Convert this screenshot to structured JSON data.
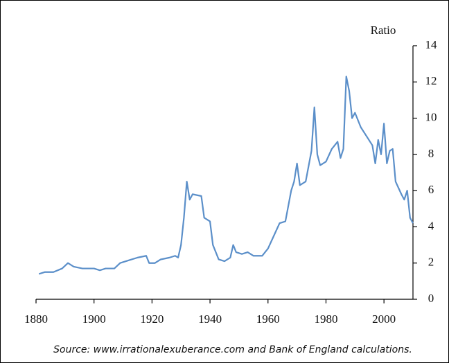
{
  "chart_data": {
    "type": "line",
    "y_label": "Ratio",
    "source": "Source:  www.irrationalexuberance.com and Bank of England calculations.",
    "x": [
      1881,
      1883,
      1886,
      1889,
      1891,
      1893,
      1896,
      1900,
      1902,
      1904,
      1907,
      1909,
      1911,
      1913,
      1915,
      1918,
      1919,
      1921,
      1923,
      1926,
      1928,
      1929,
      1930,
      1931,
      1932,
      1933,
      1934,
      1937,
      1938,
      1940,
      1941,
      1943,
      1945,
      1947,
      1948,
      1949,
      1951,
      1953,
      1955,
      1958,
      1960,
      1962,
      1964,
      1966,
      1968,
      1969,
      1970,
      1971,
      1973,
      1975,
      1976,
      1977,
      1978,
      1980,
      1982,
      1984,
      1985,
      1986,
      1987,
      1988,
      1989,
      1990,
      1992,
      1994,
      1996,
      1997,
      1998,
      1999,
      2000,
      2001,
      2002,
      2003,
      2004,
      2006,
      2007,
      2008,
      2009,
      2010
    ],
    "series": [
      {
        "name": "Ratio",
        "color": "#5b8fc9",
        "values": [
          1.4,
          1.5,
          1.5,
          1.7,
          2.0,
          1.8,
          1.7,
          1.7,
          1.6,
          1.7,
          1.7,
          2.0,
          2.1,
          2.2,
          2.3,
          2.4,
          2.0,
          2.0,
          2.2,
          2.3,
          2.4,
          2.3,
          3.0,
          4.5,
          6.5,
          5.5,
          5.8,
          5.7,
          4.5,
          4.3,
          3.0,
          2.2,
          2.1,
          2.3,
          3.0,
          2.6,
          2.5,
          2.6,
          2.4,
          2.4,
          2.8,
          3.5,
          4.2,
          4.3,
          6.0,
          6.5,
          7.5,
          6.3,
          6.5,
          8.2,
          10.6,
          8.0,
          7.4,
          7.6,
          8.3,
          8.7,
          7.8,
          8.3,
          12.3,
          11.5,
          10.0,
          10.3,
          9.5,
          9.0,
          8.5,
          7.5,
          8.8,
          8.0,
          9.7,
          7.5,
          8.2,
          8.3,
          6.5,
          5.8,
          5.5,
          6.0,
          4.5,
          4.2
        ]
      }
    ],
    "xlim": [
      1880,
      2010
    ],
    "xticks": [
      1880,
      1900,
      1920,
      1940,
      1960,
      1980,
      2000
    ],
    "ylim": [
      0,
      14
    ],
    "yticks": [
      0,
      2,
      4,
      6,
      8,
      10,
      12,
      14
    ]
  }
}
